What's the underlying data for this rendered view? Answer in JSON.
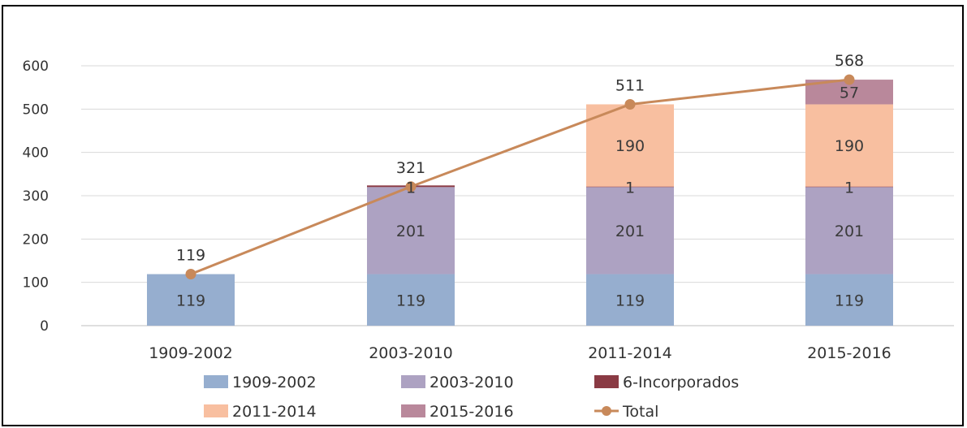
{
  "chart_data": {
    "type": "bar",
    "stacked": true,
    "title": "",
    "xlabel": "",
    "ylabel": "",
    "ylim": [
      0,
      600
    ],
    "yticks": [
      0,
      100,
      200,
      300,
      400,
      500,
      600
    ],
    "grid": true,
    "legend_position": "bottom",
    "categories": [
      "1909-2002",
      "2003-2010",
      "2011-2014",
      "2015-2016"
    ],
    "series": [
      {
        "name": "1909-2002",
        "color": "#96aecf",
        "values": [
          119,
          119,
          119,
          119
        ],
        "labels": [
          "119",
          "119",
          "119",
          "119"
        ]
      },
      {
        "name": "2003-2010",
        "color": "#ada2c2",
        "values": [
          0,
          201,
          201,
          201
        ],
        "labels": [
          "",
          "201",
          "201",
          "201"
        ]
      },
      {
        "name": "6-Incorporados",
        "color": "#8a3a44",
        "values": [
          0,
          1,
          1,
          1
        ],
        "labels": [
          "",
          "1",
          "1",
          "1"
        ]
      },
      {
        "name": "2011-2014",
        "color": "#f8bfa0",
        "values": [
          0,
          0,
          190,
          190
        ],
        "labels": [
          "",
          "",
          "190",
          "190"
        ]
      },
      {
        "name": "2015-2016",
        "color": "#b9889b",
        "values": [
          0,
          0,
          0,
          57
        ],
        "labels": [
          "",
          "",
          "",
          "57"
        ]
      }
    ],
    "line_series": {
      "name": "Total",
      "type": "line",
      "color": "#c8895a",
      "values": [
        119,
        321,
        511,
        568
      ],
      "labels": [
        "119",
        "321",
        "511",
        "568"
      ]
    },
    "legend": {
      "rows": [
        [
          "1909-2002",
          "2003-2010",
          "6-Incorporados"
        ],
        [
          "2011-2014",
          "2015-2016",
          "Total"
        ]
      ]
    }
  }
}
